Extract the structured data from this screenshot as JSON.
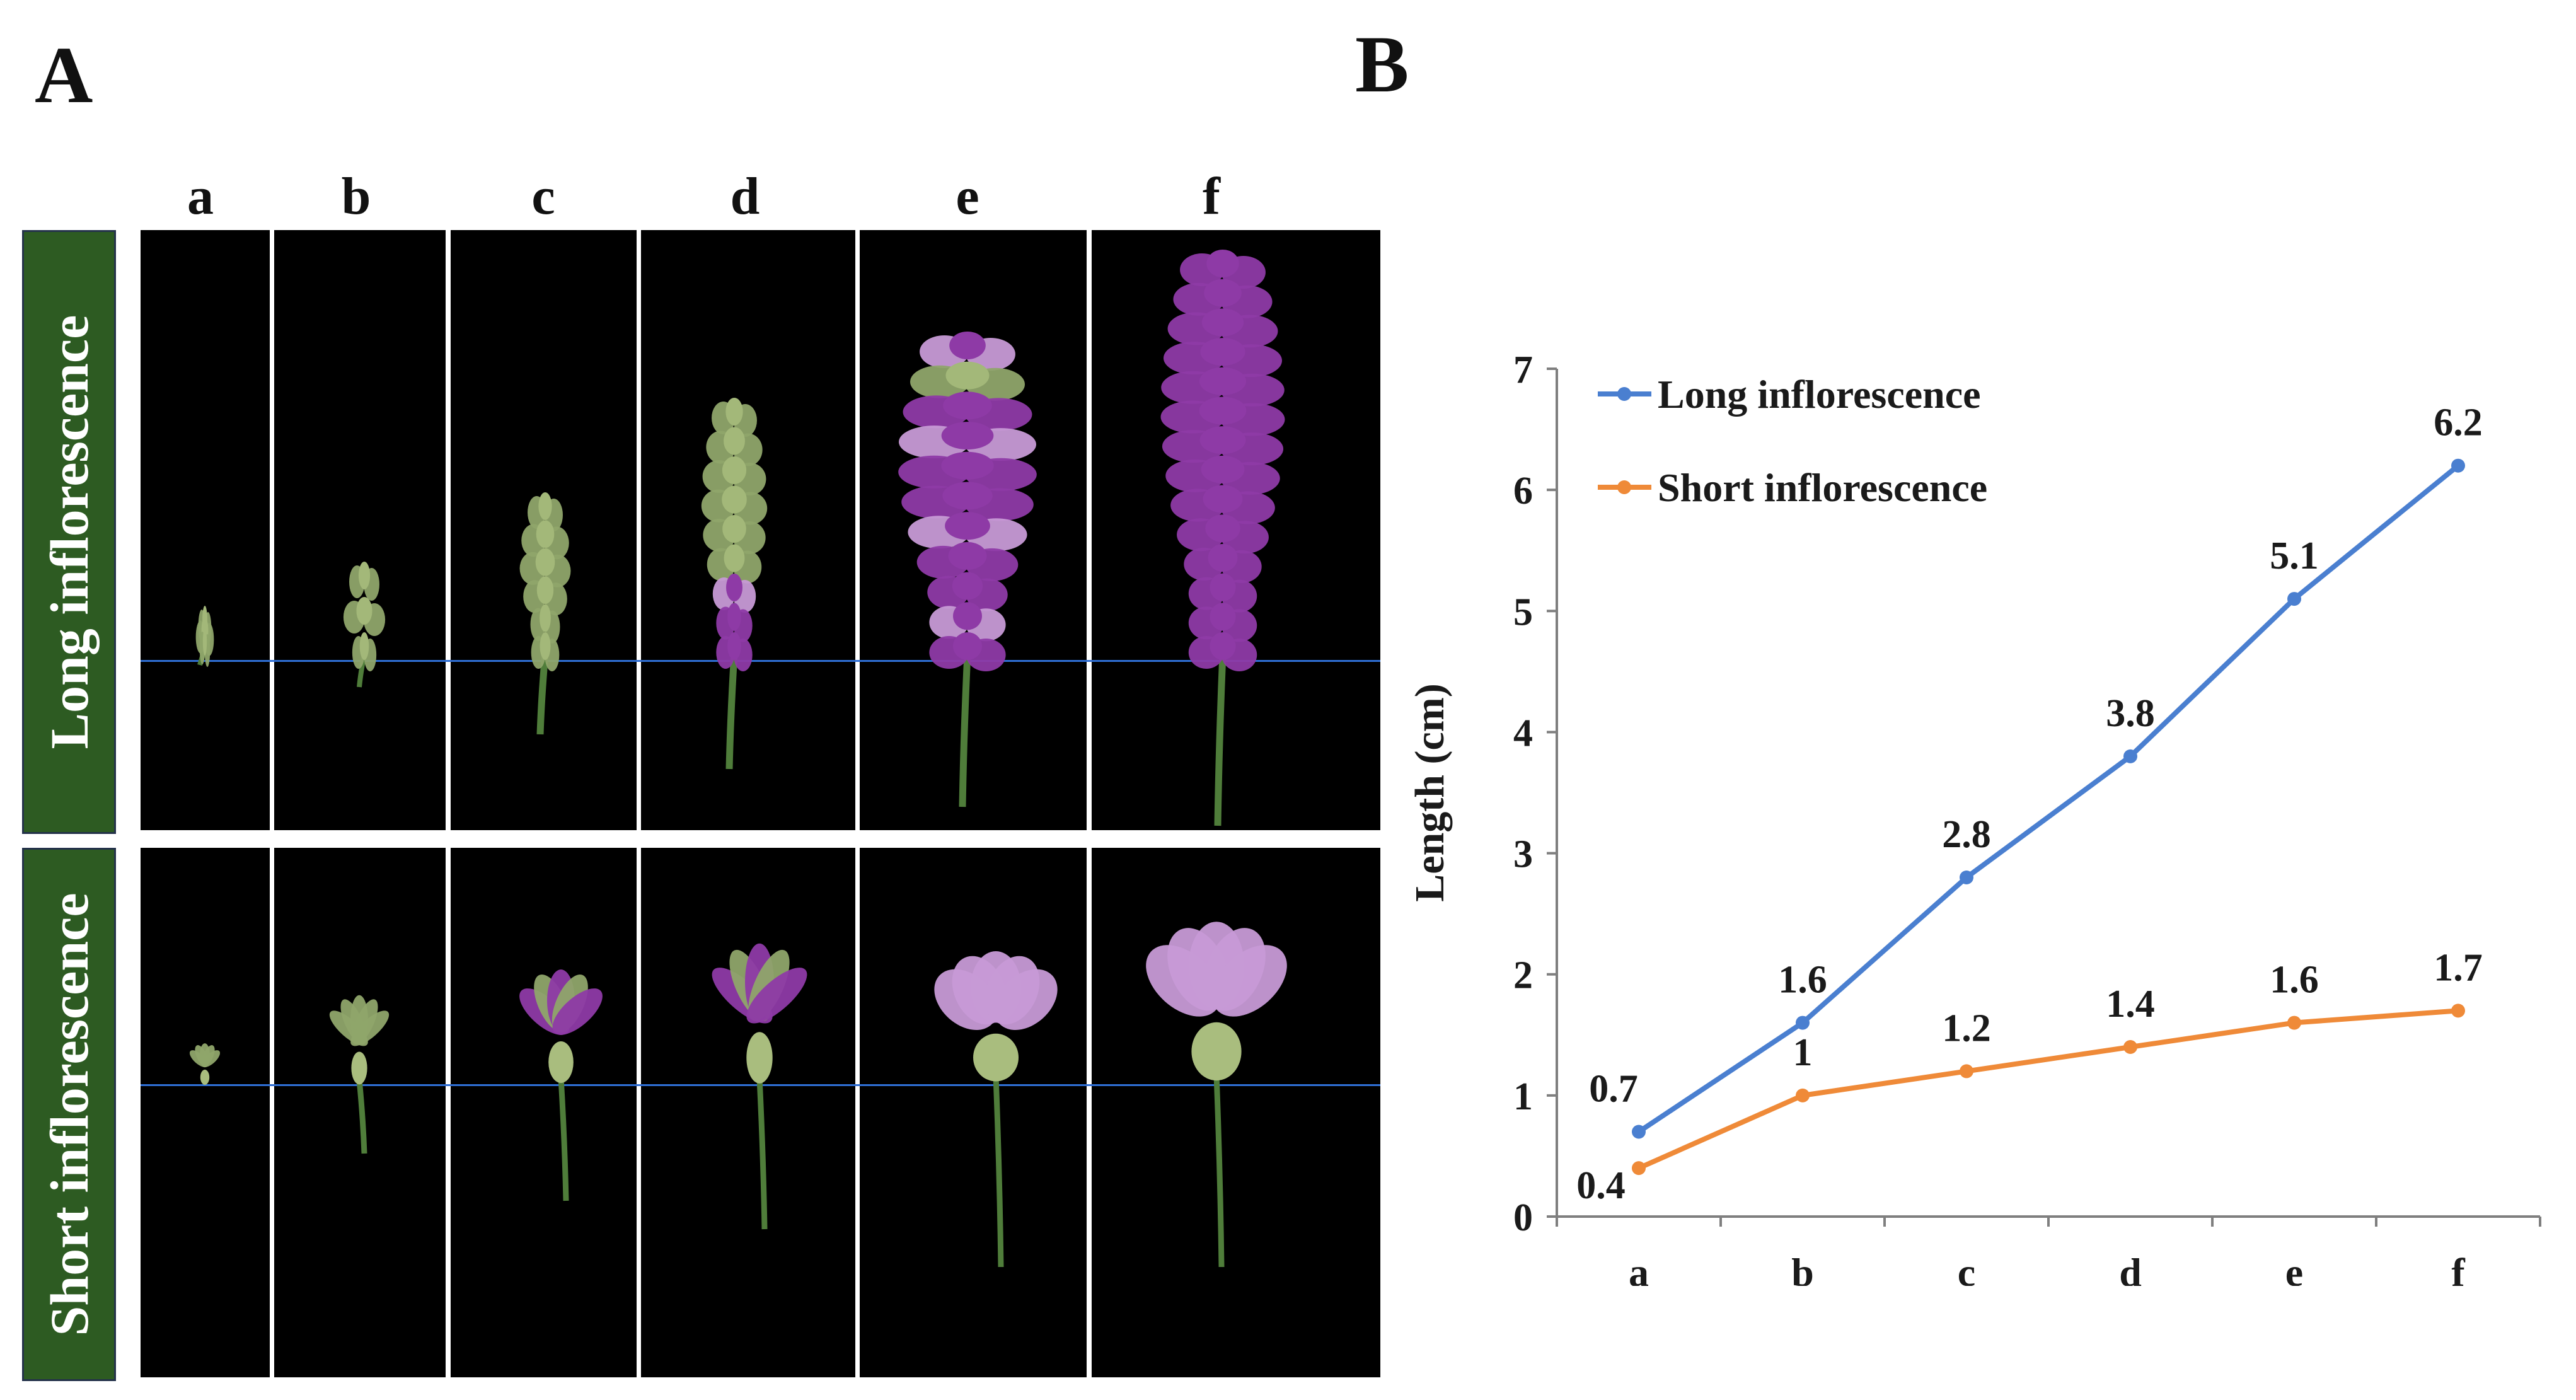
{
  "panel_a": {
    "letter": "A",
    "columns": [
      "a",
      "b",
      "c",
      "d",
      "e",
      "f"
    ],
    "rows": [
      "Long inflorescence",
      "Short inflorescence"
    ]
  },
  "panel_b": {
    "letter": "B"
  },
  "colors": {
    "long": "#4a7fd0",
    "short": "#ef8a38",
    "row_tab": "#2d5b22",
    "petal_dark": "#8e3aa6",
    "petal_light": "#c79ad6",
    "bud_green": "#8fa56a",
    "stem": "#4f7d3a"
  },
  "chart_data": {
    "type": "line",
    "categories": [
      "a",
      "b",
      "c",
      "d",
      "e",
      "f"
    ],
    "series": [
      {
        "name": "Long inflorescence",
        "values": [
          0.7,
          1.6,
          2.8,
          3.8,
          5.1,
          6.2
        ],
        "labels": [
          "0.7",
          "1.6",
          "2.8",
          "3.8",
          "5.1",
          "6.2"
        ]
      },
      {
        "name": "Short inflorescence",
        "values": [
          0.4,
          1,
          1.2,
          1.4,
          1.6,
          1.7
        ],
        "labels": [
          "0.4",
          "1",
          "1.2",
          "1.4",
          "1.6",
          "1.7"
        ]
      }
    ],
    "ylabel": "Length (cm)",
    "xlabel": "",
    "ylim": [
      0,
      7
    ],
    "yticks": [
      "0",
      "1",
      "2",
      "3",
      "4",
      "5",
      "6",
      "7"
    ],
    "legend": "top-left",
    "grid": false
  }
}
